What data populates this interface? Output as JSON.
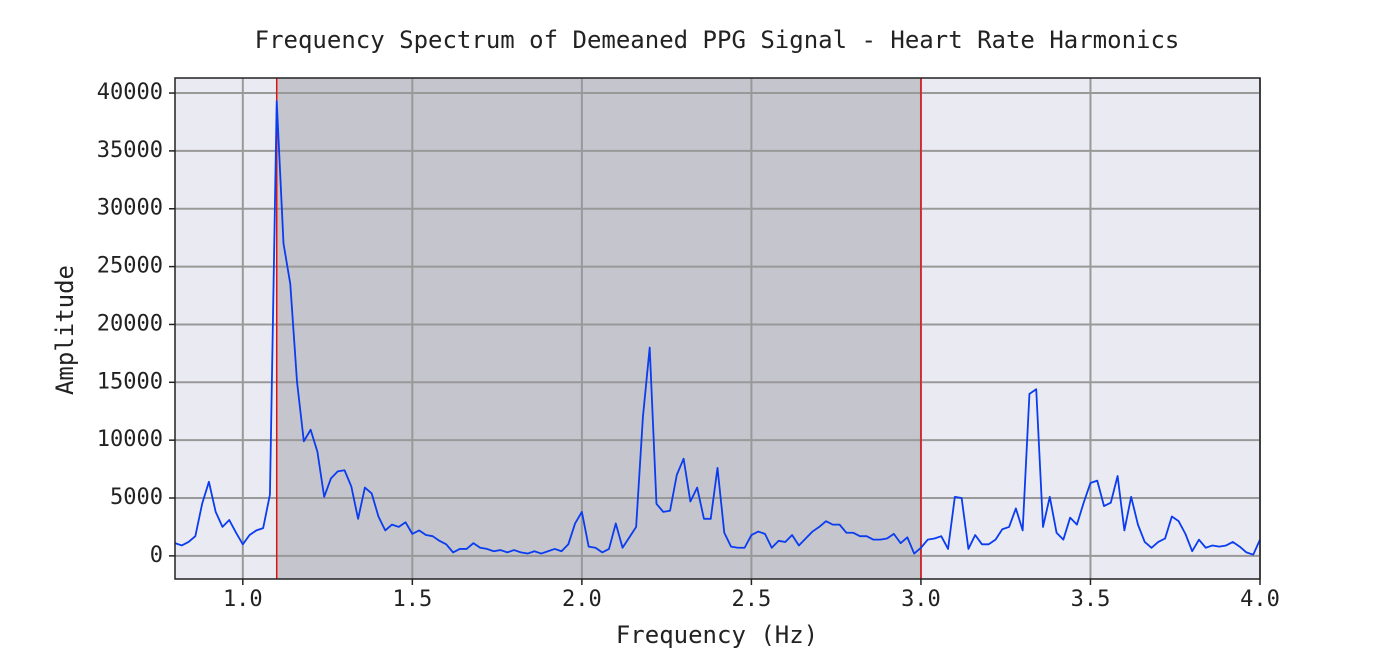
{
  "chart_data": {
    "type": "line",
    "title": "Frequency Spectrum of Demeaned PPG Signal - Heart Rate Harmonics",
    "xlabel": "Frequency (Hz)",
    "ylabel": "Amplitude",
    "x": [
      0.8,
      0.82,
      0.84,
      0.86,
      0.88,
      0.9,
      0.92,
      0.94,
      0.96,
      0.98,
      1.0,
      1.02,
      1.04,
      1.06,
      1.08,
      1.1,
      1.12,
      1.14,
      1.16,
      1.18,
      1.2,
      1.22,
      1.24,
      1.26,
      1.28,
      1.3,
      1.32,
      1.34,
      1.36,
      1.38,
      1.4,
      1.42,
      1.44,
      1.46,
      1.48,
      1.5,
      1.52,
      1.54,
      1.56,
      1.58,
      1.6,
      1.62,
      1.64,
      1.66,
      1.68,
      1.7,
      1.72,
      1.74,
      1.76,
      1.78,
      1.8,
      1.82,
      1.84,
      1.86,
      1.88,
      1.9,
      1.92,
      1.94,
      1.96,
      1.98,
      2.0,
      2.02,
      2.04,
      2.06,
      2.08,
      2.1,
      2.12,
      2.14,
      2.16,
      2.18,
      2.2,
      2.22,
      2.24,
      2.26,
      2.28,
      2.3,
      2.32,
      2.34,
      2.36,
      2.38,
      2.4,
      2.42,
      2.44,
      2.46,
      2.48,
      2.5,
      2.52,
      2.54,
      2.56,
      2.58,
      2.6,
      2.62,
      2.64,
      2.66,
      2.68,
      2.7,
      2.72,
      2.74,
      2.76,
      2.78,
      2.8,
      2.82,
      2.84,
      2.86,
      2.88,
      2.9,
      2.92,
      2.94,
      2.96,
      2.98,
      3.0,
      3.02,
      3.04,
      3.06,
      3.08,
      3.1,
      3.12,
      3.14,
      3.16,
      3.18,
      3.2,
      3.22,
      3.24,
      3.26,
      3.28,
      3.3,
      3.32,
      3.34,
      3.36,
      3.38,
      3.4,
      3.42,
      3.44,
      3.46,
      3.48,
      3.5,
      3.52,
      3.54,
      3.56,
      3.58,
      3.6,
      3.62,
      3.64,
      3.66,
      3.68,
      3.7,
      3.72,
      3.74,
      3.76,
      3.78,
      3.8,
      3.82,
      3.84,
      3.86,
      3.88,
      3.9,
      3.92,
      3.94,
      3.96,
      3.98,
      4.0
    ],
    "values": [
      1100,
      900,
      1200,
      1700,
      4500,
      6400,
      3800,
      2500,
      3100,
      2000,
      1000,
      1800,
      2200,
      2400,
      5300,
      39300,
      27000,
      23500,
      15000,
      9900,
      10900,
      9000,
      5100,
      6700,
      7300,
      7400,
      6000,
      3200,
      5900,
      5400,
      3400,
      2200,
      2700,
      2500,
      2900,
      1900,
      2200,
      1800,
      1700,
      1300,
      1000,
      300,
      600,
      600,
      1100,
      700,
      600,
      400,
      500,
      300,
      500,
      300,
      200,
      400,
      200,
      400,
      600,
      400,
      1000,
      2800,
      3800,
      800,
      700,
      300,
      600,
      2800,
      700,
      1600,
      2500,
      12000,
      18000,
      4500,
      3800,
      3900,
      7000,
      8400,
      4700,
      5900,
      3200,
      3200,
      7600,
      2000,
      800,
      700,
      700,
      1800,
      2100,
      1900,
      700,
      1300,
      1200,
      1800,
      900,
      1500,
      2100,
      2500,
      3000,
      2700,
      2700,
      2000,
      2000,
      1700,
      1700,
      1400,
      1400,
      1500,
      1900,
      1100,
      1600,
      200,
      700,
      1400,
      1500,
      1700,
      600,
      5100,
      5000,
      600,
      1800,
      1000,
      1000,
      1400,
      2300,
      2500,
      4100,
      2200,
      14000,
      14400,
      2500,
      5100,
      2000,
      1400,
      3300,
      2700,
      4600,
      6300,
      6500,
      4300,
      4600,
      6900,
      2200,
      5100,
      2700,
      1200,
      700,
      1200,
      1500,
      3400,
      3000,
      1900,
      400,
      1400,
      700,
      900,
      800,
      900,
      1200,
      800,
      300,
      100,
      1400
    ],
    "color": "#0a3cf0",
    "xlim": [
      0.8,
      4.0
    ],
    "ylim": [
      -2000,
      41300
    ],
    "xticks": [
      {
        "value": 1,
        "label": "1.0"
      },
      {
        "value": 1.5,
        "label": "1.5"
      },
      {
        "value": 2,
        "label": "2.0"
      },
      {
        "value": 2.5,
        "label": "2.5"
      },
      {
        "value": 3,
        "label": "3.0"
      },
      {
        "value": 3.5,
        "label": "3.5"
      },
      {
        "value": 4,
        "label": "4.0"
      }
    ],
    "yticks": [
      0,
      5000,
      10000,
      15000,
      20000,
      25000,
      30000,
      35000,
      40000
    ],
    "grid": true,
    "shaded_region": [
      1.1,
      3.0
    ],
    "shade_color": "#a0a0a8",
    "vlines": [
      1.1,
      3.0
    ],
    "vline_color": "#e01010"
  }
}
